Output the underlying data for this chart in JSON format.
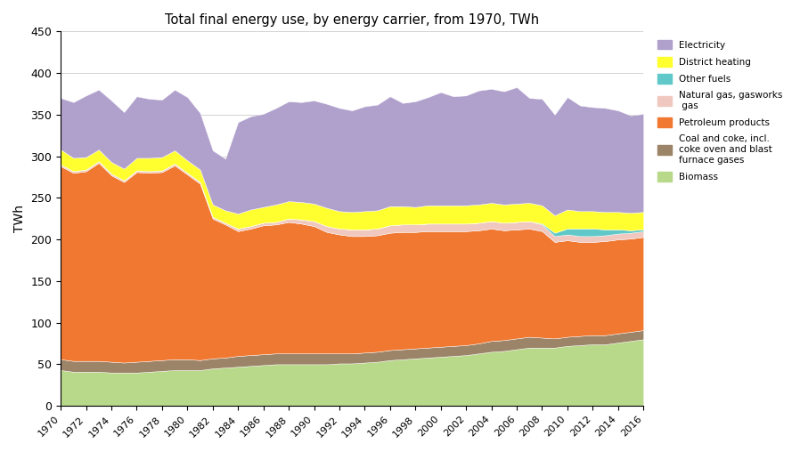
{
  "title": "Total final energy use, by energy carrier, from 1970, TWh",
  "ylabel": "TWh",
  "years": [
    1970,
    1971,
    1972,
    1973,
    1974,
    1975,
    1976,
    1977,
    1978,
    1979,
    1980,
    1981,
    1982,
    1983,
    1984,
    1985,
    1986,
    1987,
    1988,
    1989,
    1990,
    1991,
    1992,
    1993,
    1994,
    1995,
    1996,
    1997,
    1998,
    1999,
    2000,
    2001,
    2002,
    2003,
    2004,
    2005,
    2006,
    2007,
    2008,
    2009,
    2010,
    2011,
    2012,
    2013,
    2014,
    2015,
    2016
  ],
  "biomass": [
    43,
    41,
    41,
    41,
    40,
    40,
    40,
    41,
    42,
    43,
    43,
    43,
    45,
    46,
    47,
    48,
    49,
    50,
    50,
    50,
    50,
    50,
    51,
    51,
    52,
    53,
    55,
    56,
    57,
    58,
    59,
    60,
    61,
    63,
    65,
    66,
    68,
    70,
    70,
    70,
    72,
    73,
    74,
    74,
    76,
    78,
    80
  ],
  "coal": [
    13,
    13,
    13,
    13,
    13,
    12,
    13,
    13,
    13,
    13,
    13,
    12,
    12,
    12,
    13,
    13,
    13,
    13,
    13,
    13,
    13,
    13,
    12,
    12,
    12,
    12,
    12,
    12,
    12,
    12,
    12,
    12,
    12,
    12,
    13,
    13,
    13,
    13,
    12,
    11,
    11,
    11,
    11,
    11,
    11,
    11,
    11
  ],
  "petroleum": [
    232,
    226,
    228,
    238,
    224,
    217,
    228,
    226,
    226,
    233,
    222,
    212,
    168,
    160,
    150,
    152,
    155,
    155,
    158,
    156,
    153,
    146,
    143,
    141,
    140,
    140,
    141,
    141,
    140,
    140,
    139,
    138,
    137,
    136,
    135,
    132,
    131,
    130,
    128,
    116,
    116,
    113,
    112,
    113,
    113,
    112,
    112
  ],
  "natural_gas": [
    2,
    2,
    2,
    2,
    2,
    2,
    2,
    2,
    2,
    2,
    2,
    2,
    2,
    2,
    3,
    3,
    3,
    3,
    4,
    5,
    6,
    7,
    7,
    8,
    8,
    8,
    9,
    9,
    9,
    9,
    9,
    9,
    9,
    9,
    9,
    9,
    9,
    9,
    8,
    7,
    7,
    7,
    7,
    7,
    7,
    7,
    7
  ],
  "other_fuels": [
    0,
    0,
    0,
    0,
    0,
    0,
    0,
    0,
    0,
    0,
    0,
    0,
    0,
    0,
    0,
    0,
    0,
    0,
    0,
    0,
    0,
    0,
    0,
    0,
    0,
    0,
    0,
    0,
    0,
    0,
    0,
    0,
    0,
    0,
    0,
    0,
    0,
    0,
    1,
    4,
    7,
    9,
    9,
    7,
    5,
    3,
    2
  ],
  "district_heating": [
    18,
    16,
    15,
    14,
    14,
    14,
    15,
    16,
    16,
    16,
    15,
    15,
    15,
    15,
    18,
    20,
    19,
    21,
    21,
    21,
    21,
    22,
    21,
    21,
    22,
    22,
    23,
    22,
    21,
    22,
    22,
    22,
    22,
    22,
    22,
    22,
    22,
    22,
    22,
    21,
    23,
    21,
    21,
    21,
    21,
    21,
    21
  ],
  "electricity": [
    62,
    67,
    74,
    72,
    74,
    68,
    74,
    71,
    69,
    73,
    76,
    68,
    65,
    62,
    110,
    112,
    112,
    116,
    120,
    120,
    124,
    125,
    124,
    122,
    126,
    127,
    132,
    124,
    127,
    130,
    136,
    131,
    132,
    137,
    137,
    136,
    140,
    126,
    128,
    121,
    135,
    127,
    125,
    125,
    122,
    117,
    118
  ],
  "colors": {
    "biomass": "#b8d98a",
    "coal": "#9c8468",
    "petroleum": "#f07830",
    "natural_gas": "#f0c8c0",
    "other_fuels": "#60c8c8",
    "district_heating": "#ffff30",
    "electricity": "#b0a0cc"
  },
  "legend_labels": {
    "electricity": "Electricity",
    "district_heating": "District heating",
    "other_fuels": "Other fuels",
    "natural_gas": "Natural gas, gasworks\n gas",
    "petroleum": "Petroleum products",
    "coal": "Coal and coke, incl.\ncoke oven and blast\nfurnace gases",
    "biomass": "Biomass"
  },
  "ylim": [
    0,
    450
  ],
  "yticks": [
    0,
    50,
    100,
    150,
    200,
    250,
    300,
    350,
    400,
    450
  ]
}
